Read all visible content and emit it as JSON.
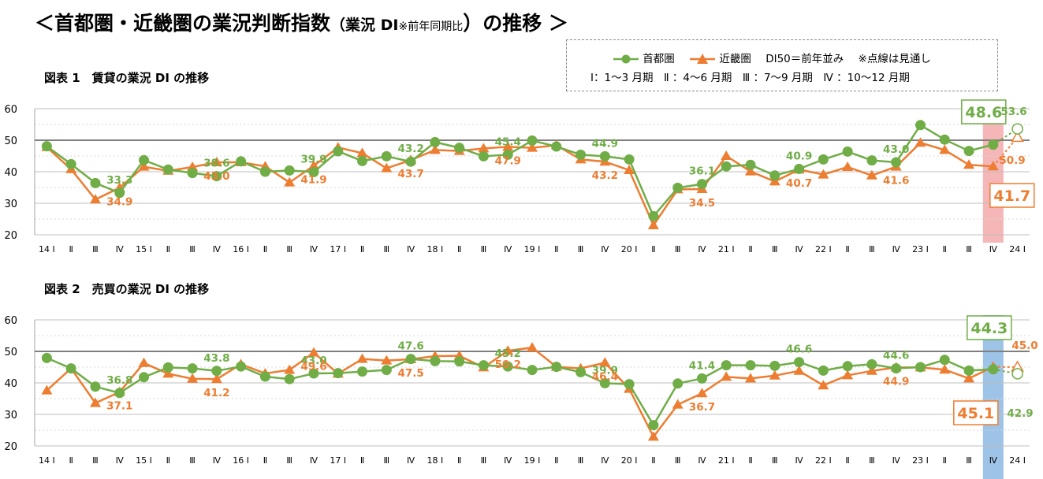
{
  "title": {
    "pre": "＜首都圏・近畿圏の業況判断指数",
    "mid": "（業況 DI",
    "note": "※前年同期比",
    "post": "）の推移 ＞"
  },
  "legend": {
    "series1": "首都圏",
    "series2": "近畿圏",
    "di50": "DI50＝前年並み",
    "dotted": "※点線は見通し",
    "quarters": "Ⅰ：1〜3 月期　Ⅱ ：4〜6 月期　Ⅲ ：7〜9 月期　Ⅳ ：10〜12 月期"
  },
  "colors": {
    "shutoken": "#70AD47",
    "kinki": "#ED7D31",
    "pink_band": "#F4B6B6",
    "blue_band": "#9DC3E6",
    "ref_line": "#7F7F7F",
    "grid": "#BFBFBF"
  },
  "chart_data": [
    {
      "type": "line",
      "title": "図表 1　賃貸の業況 DI の推移",
      "ylim": [
        20,
        60
      ],
      "yticks": [
        "20",
        "30",
        "40",
        "50",
        "60"
      ],
      "reference_line": 50,
      "grid": true,
      "x_tick_labels": [
        "14 Ⅰ",
        "Ⅱ",
        "Ⅲ",
        "Ⅳ",
        "15 Ⅰ",
        "Ⅱ",
        "Ⅲ",
        "Ⅳ",
        "16 Ⅰ",
        "Ⅱ",
        "Ⅲ",
        "Ⅳ",
        "17 Ⅰ",
        "Ⅱ",
        "Ⅲ",
        "Ⅳ",
        "18 Ⅰ",
        "Ⅱ",
        "Ⅲ",
        "Ⅳ",
        "19 Ⅰ",
        "Ⅱ",
        "Ⅲ",
        "Ⅳ",
        "20 Ⅰ",
        "Ⅱ",
        "Ⅲ",
        "Ⅳ",
        "21 Ⅰ",
        "Ⅱ",
        "Ⅲ",
        "Ⅳ",
        "22 Ⅰ",
        "Ⅱ",
        "Ⅲ",
        "Ⅳ",
        "23 Ⅰ",
        "Ⅱ",
        "Ⅲ",
        "Ⅳ",
        "24 Ⅰ"
      ],
      "highlight_index": 39,
      "series": [
        {
          "name": "首都圏",
          "values": [
            48.1,
            42.4,
            36.4,
            33.3,
            43.7,
            40.7,
            39.6,
            38.6,
            43.3,
            40.0,
            40.4,
            39.9,
            46.5,
            43.4,
            44.9,
            43.2,
            49.4,
            47.6,
            44.9,
            45.4,
            49.9,
            48.0,
            45.4,
            44.9,
            43.9,
            25.9,
            34.9,
            36.1,
            41.7,
            42.2,
            38.8,
            40.9,
            43.9,
            46.4,
            43.6,
            43.0,
            54.8,
            50.2,
            46.6,
            48.6,
            53.6
          ]
        },
        {
          "name": "近畿圏",
          "values": [
            47.8,
            40.8,
            31.2,
            34.9,
            41.6,
            40.3,
            41.5,
            43.0,
            43.0,
            41.7,
            36.6,
            41.9,
            47.7,
            45.9,
            41.1,
            43.7,
            46.9,
            46.6,
            47.4,
            47.9,
            47.6,
            48.4,
            43.9,
            43.2,
            40.5,
            23.0,
            34.4,
            34.5,
            45.0,
            40.1,
            36.9,
            40.7,
            39.1,
            41.5,
            38.8,
            41.6,
            49.2,
            46.9,
            42.2,
            41.7,
            50.9
          ]
        }
      ],
      "data_labels": [
        {
          "series": 0,
          "index": 3,
          "text": "33.3"
        },
        {
          "series": 0,
          "index": 7,
          "text": "38.6"
        },
        {
          "series": 0,
          "index": 11,
          "text": "39.9"
        },
        {
          "series": 0,
          "index": 15,
          "text": "43.2"
        },
        {
          "series": 0,
          "index": 19,
          "text": "45.4"
        },
        {
          "series": 0,
          "index": 23,
          "text": "44.9"
        },
        {
          "series": 0,
          "index": 27,
          "text": "36.1"
        },
        {
          "series": 0,
          "index": 31,
          "text": "40.9"
        },
        {
          "series": 0,
          "index": 35,
          "text": "43.0"
        },
        {
          "series": 0,
          "index": 39,
          "text": "48.6",
          "boxed": true
        },
        {
          "series": 0,
          "index": 40,
          "text": "53.6"
        },
        {
          "series": 1,
          "index": 3,
          "text": "34.9"
        },
        {
          "series": 1,
          "index": 7,
          "text": "43.0"
        },
        {
          "series": 1,
          "index": 11,
          "text": "41.9"
        },
        {
          "series": 1,
          "index": 15,
          "text": "43.7"
        },
        {
          "series": 1,
          "index": 19,
          "text": "47.9"
        },
        {
          "series": 1,
          "index": 23,
          "text": "43.2"
        },
        {
          "series": 1,
          "index": 27,
          "text": "34.5"
        },
        {
          "series": 1,
          "index": 31,
          "text": "40.7"
        },
        {
          "series": 1,
          "index": 35,
          "text": "41.6"
        },
        {
          "series": 1,
          "index": 39,
          "text": "41.7",
          "boxed": true
        },
        {
          "series": 1,
          "index": 40,
          "text": "50.9"
        }
      ]
    },
    {
      "type": "line",
      "title": "図表 2　売買の業況 DI の推移",
      "ylim": [
        20,
        60
      ],
      "yticks": [
        "20",
        "30",
        "40",
        "50",
        "60"
      ],
      "reference_line": 50,
      "grid": true,
      "x_tick_labels": [
        "14 Ⅰ",
        "Ⅱ",
        "Ⅲ",
        "Ⅳ",
        "15 Ⅰ",
        "Ⅱ",
        "Ⅲ",
        "Ⅳ",
        "16 Ⅰ",
        "Ⅱ",
        "Ⅲ",
        "Ⅳ",
        "17 Ⅰ",
        "Ⅱ",
        "Ⅲ",
        "Ⅳ",
        "18 Ⅰ",
        "Ⅱ",
        "Ⅲ",
        "Ⅳ",
        "19 Ⅰ",
        "Ⅱ",
        "Ⅲ",
        "Ⅳ",
        "20 Ⅰ",
        "Ⅱ",
        "Ⅲ",
        "Ⅳ",
        "21 Ⅰ",
        "Ⅱ",
        "Ⅲ",
        "Ⅳ",
        "22 Ⅰ",
        "Ⅱ",
        "Ⅲ",
        "Ⅳ",
        "23 Ⅰ",
        "Ⅱ",
        "Ⅲ",
        "Ⅳ",
        "24 Ⅰ"
      ],
      "highlight_index": 39,
      "series": [
        {
          "name": "首都圏",
          "values": [
            47.9,
            44.6,
            38.8,
            36.8,
            41.8,
            44.9,
            44.6,
            43.8,
            45.2,
            42.0,
            41.2,
            43.0,
            43.1,
            43.6,
            44.1,
            47.6,
            46.9,
            46.8,
            45.6,
            45.2,
            44.1,
            45.1,
            43.4,
            39.9,
            39.6,
            26.6,
            39.8,
            41.4,
            45.6,
            45.6,
            45.4,
            46.6,
            43.9,
            45.3,
            45.9,
            44.6,
            45.0,
            47.3,
            43.9,
            44.3,
            42.9
          ]
        },
        {
          "name": "近畿圏",
          "values": [
            37.6,
            44.6,
            33.6,
            37.1,
            46.3,
            42.9,
            41.3,
            41.2,
            45.9,
            43.0,
            44.1,
            49.6,
            42.9,
            47.6,
            47.1,
            47.5,
            48.5,
            48.6,
            44.9,
            50.2,
            51.2,
            45.1,
            44.6,
            46.4,
            38.1,
            22.9,
            33.1,
            36.7,
            41.9,
            41.4,
            42.3,
            43.8,
            39.2,
            42.4,
            43.8,
            44.9,
            44.9,
            44.2,
            41.4,
            45.1,
            45.0
          ]
        }
      ],
      "data_labels": [
        {
          "series": 0,
          "index": 3,
          "text": "36.8"
        },
        {
          "series": 0,
          "index": 7,
          "text": "43.8"
        },
        {
          "series": 0,
          "index": 11,
          "text": "43.0"
        },
        {
          "series": 0,
          "index": 15,
          "text": "47.6"
        },
        {
          "series": 0,
          "index": 19,
          "text": "45.2"
        },
        {
          "series": 0,
          "index": 23,
          "text": "39.9"
        },
        {
          "series": 0,
          "index": 27,
          "text": "41.4"
        },
        {
          "series": 0,
          "index": 31,
          "text": "46.6"
        },
        {
          "series": 0,
          "index": 35,
          "text": "44.6"
        },
        {
          "series": 0,
          "index": 39,
          "text": "44.3",
          "boxed": true
        },
        {
          "series": 0,
          "index": 40,
          "text": "42.9"
        },
        {
          "series": 1,
          "index": 3,
          "text": "37.1"
        },
        {
          "series": 1,
          "index": 7,
          "text": "41.2"
        },
        {
          "series": 1,
          "index": 11,
          "text": "49.6"
        },
        {
          "series": 1,
          "index": 15,
          "text": "47.5"
        },
        {
          "series": 1,
          "index": 19,
          "text": "50.2"
        },
        {
          "series": 1,
          "index": 23,
          "text": "46.4"
        },
        {
          "series": 1,
          "index": 27,
          "text": "36.7"
        },
        {
          "series": 1,
          "index": 35,
          "text": "44.9"
        },
        {
          "series": 1,
          "index": 39,
          "text": "45.1",
          "boxed": true
        },
        {
          "series": 1,
          "index": 40,
          "text": "45.0"
        }
      ]
    }
  ]
}
